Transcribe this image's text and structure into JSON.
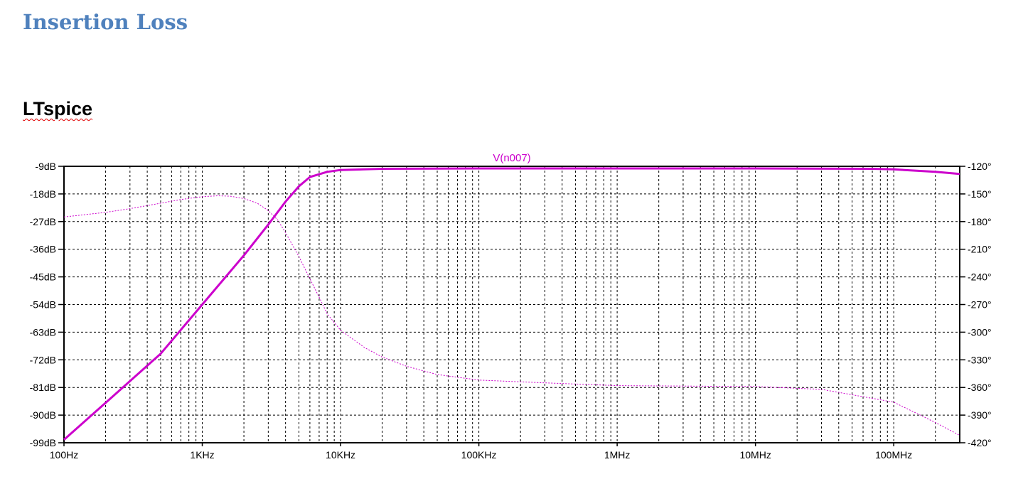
{
  "document": {
    "heading": "Insertion Loss",
    "subheading": "LTspice"
  },
  "colors": {
    "trace": "#cc00cc",
    "grid": "#000000"
  },
  "chart_data": {
    "type": "line",
    "title": "V(n007)",
    "xscale": "log",
    "xlim": [
      100,
      300000000
    ],
    "x_tick_values": [
      100,
      1000,
      10000,
      100000,
      1000000,
      10000000,
      100000000
    ],
    "x_tick_labels": [
      "100Hz",
      "1KHz",
      "10KHz",
      "100KHz",
      "1MHz",
      "10MHz",
      "100MHz"
    ],
    "ylim_left": [
      -99,
      -9
    ],
    "y_left_ticks": [
      -9,
      -18,
      -27,
      -36,
      -45,
      -54,
      -63,
      -72,
      -81,
      -90,
      -99
    ],
    "y_left_tick_labels": [
      "-9dB",
      "-18dB",
      "-27dB",
      "-36dB",
      "-45dB",
      "-54dB",
      "-63dB",
      "-72dB",
      "-81dB",
      "-90dB",
      "-99dB"
    ],
    "ylim_right": [
      -420,
      -120
    ],
    "y_right_ticks": [
      -120,
      -150,
      -180,
      -210,
      -240,
      -270,
      -300,
      -330,
      -360,
      -390,
      -420
    ],
    "y_right_tick_labels": [
      "-120°",
      "-150°",
      "-180°",
      "-210°",
      "-240°",
      "-270°",
      "-300°",
      "-330°",
      "-360°",
      "-390°",
      "-420°"
    ],
    "grid": true,
    "series": [
      {
        "name": "V(n007)",
        "style": "solid",
        "axis": "left",
        "x": [
          100,
          200,
          500,
          1000,
          2000,
          3000,
          4000,
          5000,
          6000,
          8000,
          10000,
          20000,
          100000,
          1000000,
          10000000,
          70000000,
          100000000,
          200000000,
          300000000
        ],
        "values": [
          -98,
          -86,
          -70,
          -54,
          -38,
          -28,
          -20.5,
          -15.5,
          -12.5,
          -10.8,
          -10.2,
          -9.8,
          -9.7,
          -9.7,
          -9.7,
          -9.8,
          -10.0,
          -10.8,
          -11.5
        ]
      },
      {
        "name": "V(n007) phase",
        "style": "dashed",
        "axis": "right",
        "x": [
          100,
          200,
          300,
          500,
          700,
          1000,
          1300,
          1600,
          2000,
          2500,
          3000,
          3500,
          4000,
          5000,
          6000,
          7000,
          8000,
          10000,
          15000,
          20000,
          30000,
          50000,
          100000,
          300000,
          1000000,
          10000000,
          30000000,
          100000000,
          200000000,
          300000000
        ],
        "values": [
          -175,
          -170,
          -166,
          -160,
          -156,
          -153,
          -152,
          -152.5,
          -155,
          -160,
          -168,
          -178,
          -192,
          -218,
          -242,
          -262,
          -280,
          -298,
          -317,
          -327,
          -337,
          -346,
          -352,
          -355,
          -358,
          -359,
          -362,
          -376,
          -398,
          -412
        ]
      }
    ]
  }
}
